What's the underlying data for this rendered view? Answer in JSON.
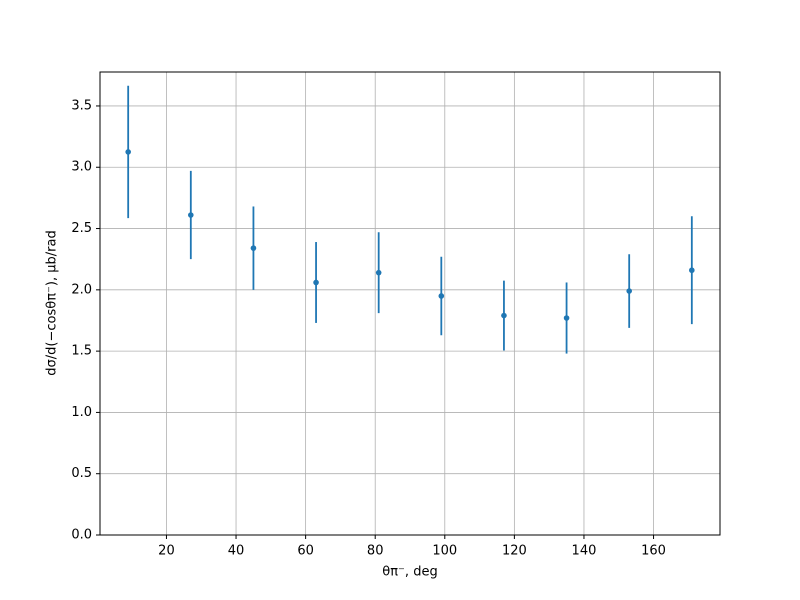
{
  "chart_data": {
    "type": "errorbar",
    "x_label": "θπ⁻, deg",
    "y_label": "dσ/d(−cosθπ⁻), μb/rad",
    "x": [
      9,
      27,
      45,
      63,
      81,
      99,
      117,
      135,
      153,
      171
    ],
    "values": [
      3.125,
      2.61,
      2.34,
      2.06,
      2.14,
      1.95,
      1.79,
      1.77,
      1.99,
      2.16
    ],
    "errors": [
      0.54,
      0.36,
      0.34,
      0.33,
      0.33,
      0.32,
      0.285,
      0.29,
      0.3,
      0.44
    ],
    "color": "#1f77b4",
    "xlim": [
      0.9,
      179.1
    ],
    "ylim": [
      0,
      3.777
    ],
    "xticks": [
      20,
      40,
      60,
      80,
      100,
      120,
      140,
      160
    ],
    "yticks": [
      {
        "value": 0,
        "label": "0.0"
      },
      {
        "value": 0.5,
        "label": "0.5"
      },
      {
        "value": 1,
        "label": "1.0"
      },
      {
        "value": 1.5,
        "label": "1.5"
      },
      {
        "value": 2,
        "label": "2.0"
      },
      {
        "value": 2.5,
        "label": "2.5"
      },
      {
        "value": 3,
        "label": "3.0"
      },
      {
        "value": 3.5,
        "label": "3.5"
      }
    ],
    "grid": true
  }
}
